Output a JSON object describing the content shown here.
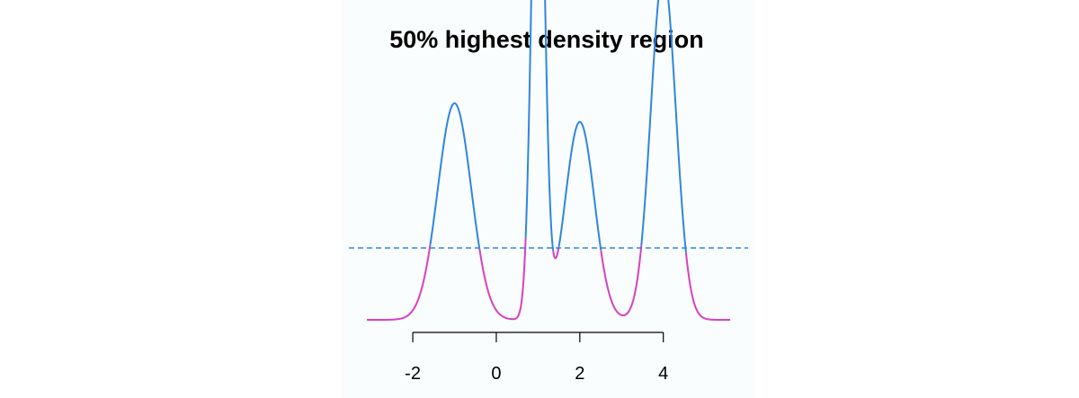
{
  "chart_data": {
    "type": "line",
    "title": "50% highest density region",
    "xlabel": "",
    "ylabel": "",
    "xlim": [
      -3.1,
      5.6
    ],
    "ylim": [
      0,
      0.3
    ],
    "x_ticks": [
      "-2",
      "0",
      "2",
      "4"
    ],
    "x_tick_values": [
      -2,
      0,
      2,
      4
    ],
    "threshold_density": 0.0828,
    "hdr_intervals": [
      [
        0.73,
        1.38
      ],
      [
        3.63,
        4.43
      ]
    ],
    "mixture_components": [
      {
        "weight": 0.25,
        "mean": -1,
        "sd": 0.4
      },
      {
        "weight": 0.25,
        "mean": 1,
        "sd": 0.15
      },
      {
        "weight": 0.2,
        "mean": 2,
        "sd": 0.35
      },
      {
        "weight": 0.3,
        "mean": 4,
        "sd": 0.3
      }
    ],
    "colors": {
      "inside_hdr": "#2f86dc",
      "outside_hdr": "#d93fbf",
      "threshold_line": "#2f86dc"
    },
    "grid": false,
    "legend": "none"
  }
}
